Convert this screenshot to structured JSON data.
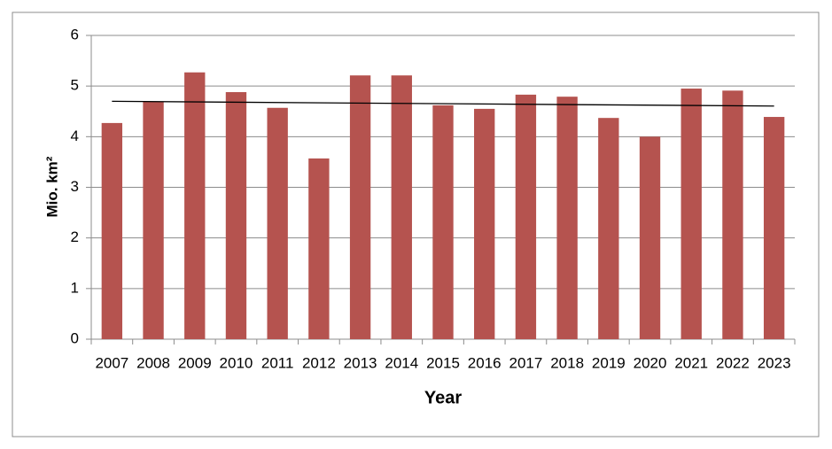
{
  "chart_data": {
    "type": "bar",
    "x_label": "Year",
    "y_label": "Mio. km²",
    "categories": [
      "2007",
      "2008",
      "2009",
      "2010",
      "2011",
      "2012",
      "2013",
      "2014",
      "2015",
      "2016",
      "2017",
      "2018",
      "2019",
      "2020",
      "2021",
      "2022",
      "2023"
    ],
    "values": [
      4.27,
      4.69,
      5.27,
      4.88,
      4.57,
      3.57,
      5.21,
      5.21,
      4.62,
      4.55,
      4.83,
      4.79,
      4.37,
      4.0,
      4.95,
      4.91,
      4.39
    ],
    "color": "#b5534f",
    "ylim": [
      0,
      6
    ],
    "yticks": [
      0,
      1,
      2,
      3,
      4,
      5,
      6
    ],
    "grid": true,
    "trendline": "linear"
  }
}
